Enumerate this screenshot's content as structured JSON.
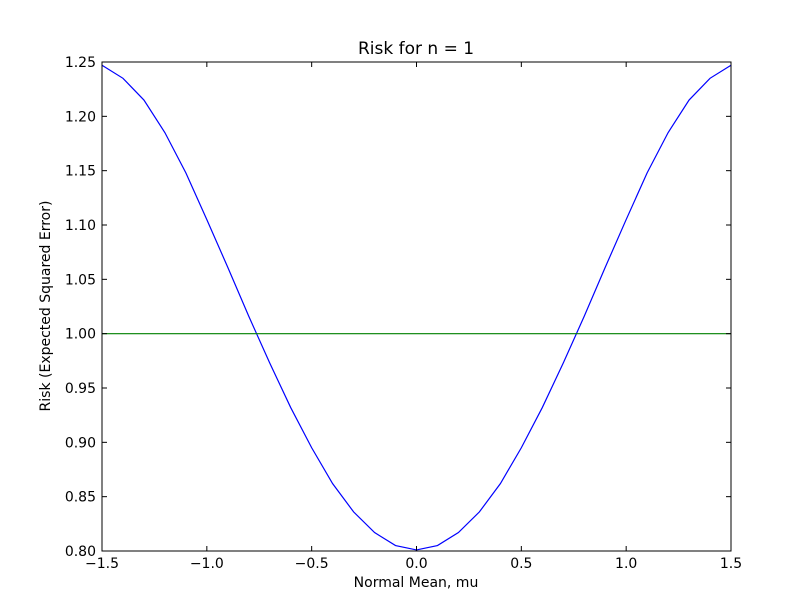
{
  "chart_data": {
    "type": "line",
    "title": "Risk for n = 1",
    "xlabel": "Normal Mean, mu",
    "ylabel": "Risk (Expected Squared Error)",
    "xlim": [
      -1.5,
      1.5
    ],
    "ylim": [
      0.8,
      1.25
    ],
    "x_ticks": [
      -1.5,
      -1.0,
      -0.5,
      0.0,
      0.5,
      1.0,
      1.5
    ],
    "x_tick_labels": [
      "−1.5",
      "−1.0",
      "−0.5",
      "0.0",
      "0.5",
      "1.0",
      "1.5"
    ],
    "y_ticks": [
      0.8,
      0.85,
      0.9,
      0.95,
      1.0,
      1.05,
      1.1,
      1.15,
      1.2,
      1.25
    ],
    "y_tick_labels": [
      "0.80",
      "0.85",
      "0.90",
      "0.95",
      "1.00",
      "1.05",
      "1.10",
      "1.15",
      "1.20",
      "1.25"
    ],
    "grid": false,
    "legend": "none",
    "series": [
      {
        "color": "#0000ff",
        "x": [
          -1.5,
          -1.4,
          -1.3,
          -1.2,
          -1.1,
          -1.0,
          -0.9,
          -0.8,
          -0.7,
          -0.6,
          -0.5,
          -0.4,
          -0.3,
          -0.2,
          -0.1,
          0.0,
          0.1,
          0.2,
          0.3,
          0.4,
          0.5,
          0.6,
          0.7,
          0.8,
          0.9,
          1.0,
          1.1,
          1.2,
          1.3,
          1.4,
          1.5
        ],
        "y": [
          1.247,
          1.235,
          1.215,
          1.185,
          1.148,
          1.105,
          1.061,
          1.016,
          0.973,
          0.932,
          0.895,
          0.862,
          0.836,
          0.817,
          0.805,
          0.801,
          0.805,
          0.817,
          0.836,
          0.862,
          0.895,
          0.932,
          0.973,
          1.016,
          1.061,
          1.105,
          1.148,
          1.185,
          1.215,
          1.235,
          1.247
        ]
      },
      {
        "color": "#008000",
        "x": [
          -1.5,
          1.5
        ],
        "y": [
          1.0,
          1.0
        ]
      }
    ]
  }
}
